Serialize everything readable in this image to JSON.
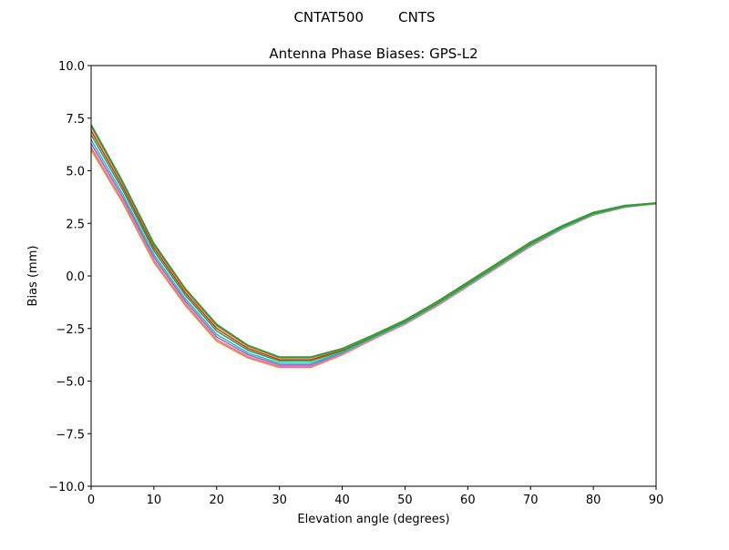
{
  "suptitle": "CNTAT500        CNTS",
  "chart_data": {
    "type": "line",
    "title": "Antenna Phase Biases: GPS-L2",
    "xlabel": "Elevation angle (degrees)",
    "ylabel": "Bias (mm)",
    "xlim": [
      0,
      90
    ],
    "ylim": [
      -10,
      10
    ],
    "xticks": [
      0,
      10,
      20,
      30,
      40,
      50,
      60,
      70,
      80,
      90
    ],
    "xtick_labels": [
      "0",
      "10",
      "20",
      "30",
      "40",
      "50",
      "60",
      "70",
      "80",
      "90"
    ],
    "yticks": [
      -10,
      -7.5,
      -5,
      -2.5,
      0,
      2.5,
      5,
      7.5,
      10
    ],
    "ytick_labels": [
      "−10.0",
      "−7.5",
      "−5.0",
      "−2.5",
      "0.0",
      "2.5",
      "5.0",
      "7.5",
      "10.0"
    ],
    "grid": false,
    "legend": "none",
    "x": [
      0,
      5,
      10,
      15,
      20,
      25,
      30,
      35,
      40,
      45,
      50,
      55,
      60,
      65,
      70,
      75,
      80,
      85,
      90
    ],
    "series": [
      {
        "color": "#1f77b4",
        "values": [
          7.2,
          4.5,
          1.55,
          -0.6,
          -2.3,
          -3.3,
          -3.85,
          -3.85,
          -3.45,
          -2.8,
          -2.1,
          -1.25,
          -0.3,
          0.65,
          1.6,
          2.38,
          3.01,
          3.34,
          3.47
        ]
      },
      {
        "color": "#ff7f0e",
        "values": [
          6.0,
          3.5,
          0.65,
          -1.4,
          -3.1,
          -3.9,
          -4.35,
          -4.35,
          -3.75,
          -3.0,
          -2.3,
          -1.45,
          -0.5,
          0.45,
          1.4,
          2.22,
          2.89,
          3.26,
          3.43
        ]
      },
      {
        "color": "#d62728",
        "values": [
          6.9,
          4.25,
          1.33,
          -0.8,
          -2.5,
          -3.45,
          -3.98,
          -3.98,
          -3.53,
          -2.85,
          -2.15,
          -1.3,
          -0.35,
          0.6,
          1.55,
          2.34,
          2.98,
          3.32,
          3.46
        ]
      },
      {
        "color": "#9467bd",
        "values": [
          6.3,
          3.75,
          0.88,
          -1.2,
          -2.9,
          -3.75,
          -4.23,
          -4.23,
          -3.68,
          -2.95,
          -2.25,
          -1.4,
          -0.45,
          0.5,
          1.45,
          2.26,
          2.92,
          3.28,
          3.44
        ]
      },
      {
        "color": "#e377c2",
        "values": [
          6.12,
          3.6,
          0.74,
          -1.32,
          -3.02,
          -3.84,
          -4.3,
          -4.3,
          -3.72,
          -2.98,
          -2.28,
          -1.43,
          -0.48,
          0.47,
          1.42,
          2.24,
          2.9,
          3.27,
          3.43
        ]
      },
      {
        "color": "#17becf",
        "values": [
          6.48,
          3.9,
          1.01,
          -1.08,
          -2.78,
          -3.66,
          -4.15,
          -4.15,
          -3.63,
          -2.92,
          -2.22,
          -1.37,
          -0.42,
          0.53,
          1.48,
          2.28,
          2.94,
          3.29,
          3.45
        ]
      },
      {
        "color": "#ff7f0e",
        "values": [
          7.08,
          4.4,
          1.46,
          -0.68,
          -2.38,
          -3.36,
          -3.9,
          -3.9,
          -3.48,
          -2.82,
          -2.12,
          -1.27,
          -0.32,
          0.63,
          1.58,
          2.36,
          3.0,
          3.33,
          3.47
        ]
      },
      {
        "color": "#2ca02c",
        "values": [
          6.72,
          4.1,
          1.19,
          -0.92,
          -2.62,
          -3.54,
          -4.05,
          -4.05,
          -3.57,
          -2.88,
          -2.18,
          -1.33,
          -0.38,
          0.57,
          1.52,
          2.32,
          2.96,
          3.31,
          3.45
        ]
      },
      {
        "color": "#2ca02c",
        "values": [
          7.15,
          4.45,
          1.5,
          -0.62,
          -2.33,
          -3.32,
          -3.87,
          -3.87,
          -3.46,
          -2.8,
          -2.1,
          -1.24,
          -0.29,
          0.66,
          1.61,
          2.38,
          3.02,
          3.35,
          3.47
        ]
      }
    ]
  }
}
